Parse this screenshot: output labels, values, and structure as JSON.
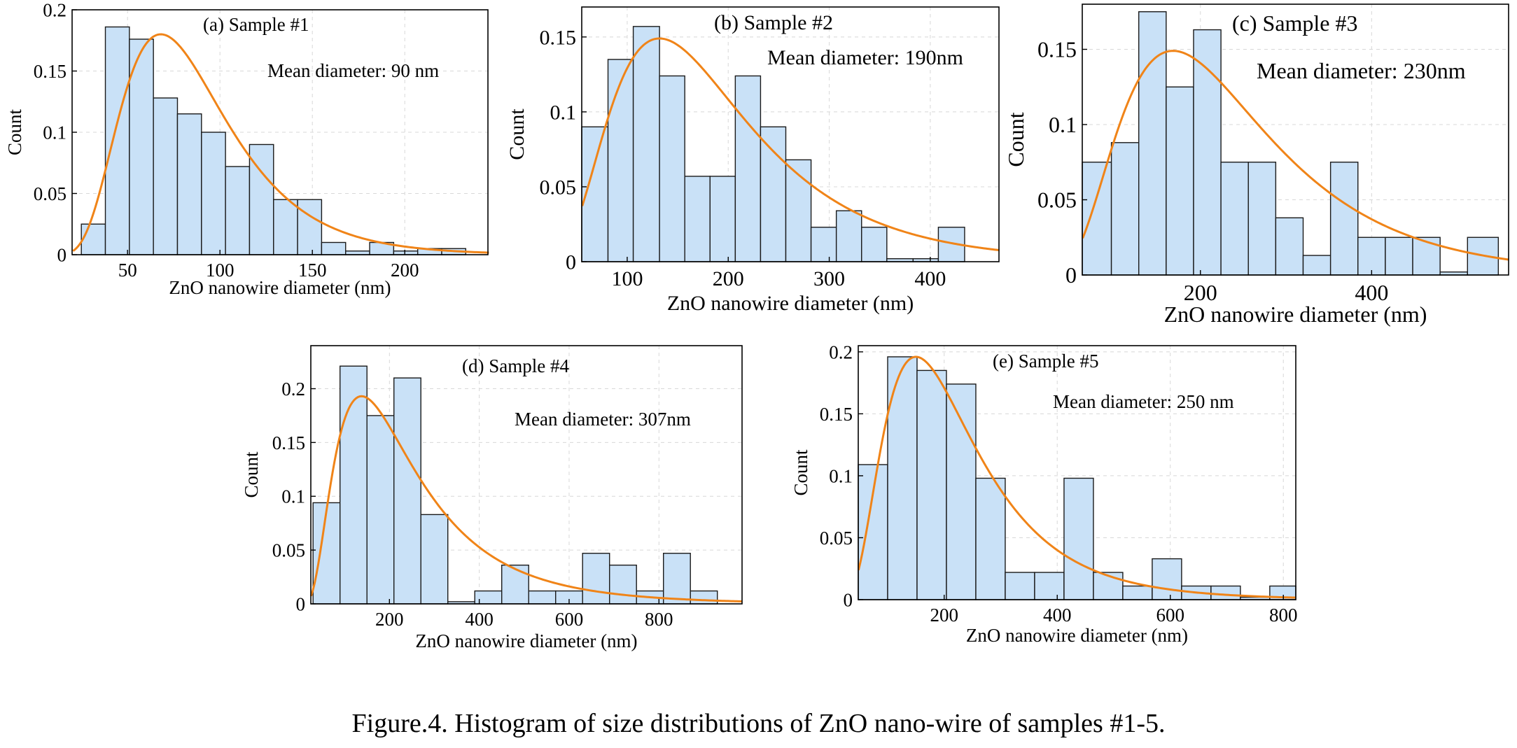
{
  "caption": "Figure.4. Histogram of size distributions of ZnO nano-wire of samples #1-5.",
  "colors": {
    "bar_fill": "#c9e1f7",
    "bar_stroke": "#1a1a1a",
    "fit_line": "#f08418",
    "grid": "#d8d8d8"
  },
  "chart_data": [
    {
      "id": "a",
      "type": "bar",
      "title": "(a) Sample #1",
      "annotation": "Mean diameter: 90 nm",
      "xlabel": "ZnO nanowire diameter (nm)",
      "ylabel": "Count",
      "xlim": [
        20,
        245
      ],
      "ylim": [
        0,
        0.2
      ],
      "xticks": [
        50,
        100,
        150,
        200
      ],
      "yticks": [
        0,
        0.05,
        0.1,
        0.15,
        0.2
      ],
      "grid": true,
      "bins": [
        [
          25,
          38,
          0.025
        ],
        [
          38,
          51,
          0.186
        ],
        [
          51,
          64,
          0.176
        ],
        [
          64,
          77,
          0.128
        ],
        [
          77,
          90,
          0.115
        ],
        [
          90,
          103,
          0.1
        ],
        [
          103,
          116,
          0.072
        ],
        [
          116,
          129,
          0.09
        ],
        [
          129,
          142,
          0.045
        ],
        [
          142,
          155,
          0.045
        ],
        [
          155,
          168,
          0.01
        ],
        [
          168,
          181,
          0.003
        ],
        [
          181,
          194,
          0.01
        ],
        [
          194,
          207,
          0.003
        ],
        [
          207,
          220,
          0.005
        ],
        [
          220,
          233,
          0.005
        ]
      ],
      "fit": {
        "type": "lognormal",
        "peak_x": 68,
        "peak_y": 0.18,
        "sigma": 0.42
      }
    },
    {
      "id": "b",
      "type": "bar",
      "title": "(b) Sample #2",
      "annotation": "Mean diameter: 190nm",
      "xlabel": "ZnO nanowire diameter (nm)",
      "ylabel": "Count",
      "xlim": [
        55,
        468
      ],
      "ylim": [
        0,
        0.17
      ],
      "xticks": [
        100,
        200,
        300,
        400
      ],
      "yticks": [
        0,
        0.05,
        0.1,
        0.15
      ],
      "grid": true,
      "bins": [
        [
          55,
          81,
          0.09
        ],
        [
          81,
          106,
          0.135
        ],
        [
          106,
          132,
          0.157
        ],
        [
          132,
          157,
          0.124
        ],
        [
          157,
          182,
          0.057
        ],
        [
          182,
          207,
          0.057
        ],
        [
          207,
          232,
          0.124
        ],
        [
          232,
          257,
          0.09
        ],
        [
          257,
          282,
          0.068
        ],
        [
          282,
          307,
          0.023
        ],
        [
          307,
          332,
          0.034
        ],
        [
          332,
          357,
          0.023
        ],
        [
          357,
          383,
          0.002
        ],
        [
          383,
          408,
          0.002
        ],
        [
          408,
          434,
          0.023
        ]
      ],
      "fit": {
        "type": "lognormal",
        "peak_x": 132,
        "peak_y": 0.149,
        "sigma": 0.52
      }
    },
    {
      "id": "c",
      "type": "bar",
      "title": "(c) Sample #3",
      "annotation": "Mean diameter: 230nm",
      "xlabel": "ZnO nanowire diameter (nm)",
      "ylabel": "Count",
      "xlim": [
        62,
        560
      ],
      "ylim": [
        0,
        0.18
      ],
      "xticks": [
        200,
        400
      ],
      "yticks": [
        0,
        0.05,
        0.1,
        0.15
      ],
      "grid": true,
      "bins": [
        [
          62,
          96,
          0.075
        ],
        [
          96,
          128,
          0.088
        ],
        [
          128,
          160,
          0.175
        ],
        [
          160,
          192,
          0.125
        ],
        [
          192,
          224,
          0.163
        ],
        [
          224,
          256,
          0.075
        ],
        [
          256,
          288,
          0.075
        ],
        [
          288,
          320,
          0.038
        ],
        [
          320,
          352,
          0.013
        ],
        [
          352,
          384,
          0.075
        ],
        [
          384,
          416,
          0.025
        ],
        [
          416,
          448,
          0.025
        ],
        [
          448,
          480,
          0.025
        ],
        [
          480,
          512,
          0.002
        ],
        [
          512,
          548,
          0.025
        ]
      ],
      "fit": {
        "type": "lognormal",
        "peak_x": 168,
        "peak_y": 0.149,
        "sigma": 0.52
      }
    },
    {
      "id": "d",
      "type": "bar",
      "title": "(d) Sample #4",
      "annotation": "Mean diameter: 307nm",
      "xlabel": "ZnO nanowire diameter (nm)",
      "ylabel": "Count",
      "xlim": [
        25,
        985
      ],
      "ylim": [
        0,
        0.24
      ],
      "xticks": [
        200,
        400,
        600,
        800
      ],
      "yticks": [
        0,
        0.05,
        0.1,
        0.15,
        0.2
      ],
      "grid": true,
      "bins": [
        [
          30,
          90,
          0.094
        ],
        [
          90,
          150,
          0.221
        ],
        [
          150,
          210,
          0.175
        ],
        [
          210,
          270,
          0.21
        ],
        [
          270,
          330,
          0.083
        ],
        [
          330,
          390,
          0.002
        ],
        [
          390,
          450,
          0.012
        ],
        [
          450,
          510,
          0.036
        ],
        [
          510,
          570,
          0.012
        ],
        [
          570,
          630,
          0.012
        ],
        [
          630,
          690,
          0.047
        ],
        [
          690,
          750,
          0.036
        ],
        [
          750,
          810,
          0.012
        ],
        [
          810,
          870,
          0.047
        ],
        [
          870,
          930,
          0.012
        ]
      ],
      "fit": {
        "type": "lognormal",
        "peak_x": 138,
        "peak_y": 0.193,
        "sigma": 0.66
      }
    },
    {
      "id": "e",
      "type": "bar",
      "title": "(e) Sample #5",
      "annotation": "Mean diameter: 250 nm",
      "xlabel": "ZnO nanowire diameter (nm)",
      "ylabel": "Count",
      "xlim": [
        48,
        822
      ],
      "ylim": [
        0,
        0.205
      ],
      "xticks": [
        200,
        400,
        600,
        800
      ],
      "yticks": [
        0,
        0.05,
        0.1,
        0.15,
        0.2
      ],
      "grid": true,
      "bins": [
        [
          48,
          100,
          0.109
        ],
        [
          100,
          152,
          0.196
        ],
        [
          152,
          204,
          0.185
        ],
        [
          204,
          256,
          0.174
        ],
        [
          256,
          308,
          0.098
        ],
        [
          308,
          360,
          0.022
        ],
        [
          360,
          412,
          0.022
        ],
        [
          412,
          464,
          0.098
        ],
        [
          464,
          516,
          0.022
        ],
        [
          516,
          568,
          0.011
        ],
        [
          568,
          620,
          0.033
        ],
        [
          620,
          672,
          0.011
        ],
        [
          672,
          724,
          0.011
        ],
        [
          724,
          776,
          0.002
        ],
        [
          776,
          822,
          0.011
        ]
      ],
      "fit": {
        "type": "lognormal",
        "peak_x": 150,
        "peak_y": 0.196,
        "sigma": 0.55
      }
    }
  ]
}
